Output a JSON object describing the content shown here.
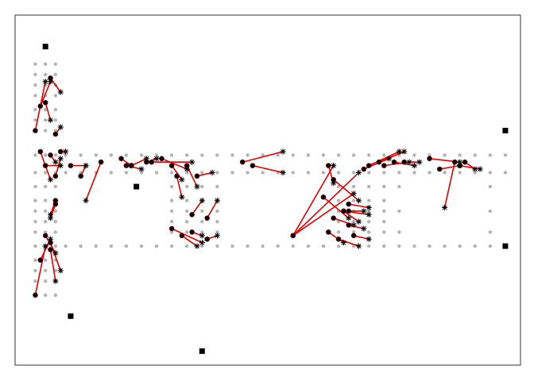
{
  "chart_data": {
    "type": "scatter",
    "xlim": [
      0,
      100
    ],
    "ylim": [
      0,
      100
    ],
    "axes_visible": false,
    "box": true,
    "grid_points": {
      "color": "#b3b3b3",
      "points": [
        [
          4,
          86
        ],
        [
          6,
          86
        ],
        [
          8,
          86
        ],
        [
          4,
          83
        ],
        [
          6,
          83
        ],
        [
          8,
          83
        ],
        [
          4,
          80
        ],
        [
          6,
          80
        ],
        [
          8,
          80
        ],
        [
          4,
          77
        ],
        [
          6,
          77
        ],
        [
          8,
          77
        ],
        [
          4,
          73
        ],
        [
          6,
          73
        ],
        [
          8,
          73
        ],
        [
          4,
          70
        ],
        [
          6,
          70
        ],
        [
          8,
          70
        ],
        [
          4,
          67
        ],
        [
          6,
          67
        ],
        [
          8,
          67
        ],
        [
          4,
          60
        ],
        [
          6,
          60
        ],
        [
          8,
          60
        ],
        [
          10,
          60
        ],
        [
          13,
          60
        ],
        [
          16,
          60
        ],
        [
          19,
          60
        ],
        [
          22,
          60
        ],
        [
          25,
          60
        ],
        [
          28,
          60
        ],
        [
          31,
          60
        ],
        [
          34,
          60
        ],
        [
          37,
          60
        ],
        [
          40,
          60
        ],
        [
          43,
          60
        ],
        [
          46,
          60
        ],
        [
          49,
          60
        ],
        [
          52,
          60
        ],
        [
          55,
          60
        ],
        [
          58,
          60
        ],
        [
          61,
          60
        ],
        [
          64,
          60
        ],
        [
          67,
          60
        ],
        [
          70,
          60
        ],
        [
          73,
          60
        ],
        [
          76,
          60
        ],
        [
          79,
          60
        ],
        [
          82,
          60
        ],
        [
          85,
          60
        ],
        [
          88,
          60
        ],
        [
          91,
          60
        ],
        [
          94,
          60
        ],
        [
          97,
          60
        ],
        [
          4,
          55
        ],
        [
          6,
          55
        ],
        [
          8,
          55
        ],
        [
          10,
          55
        ],
        [
          13,
          55
        ],
        [
          16,
          55
        ],
        [
          19,
          55
        ],
        [
          22,
          55
        ],
        [
          25,
          55
        ],
        [
          28,
          55
        ],
        [
          31,
          55
        ],
        [
          34,
          55
        ],
        [
          37,
          55
        ],
        [
          40,
          55
        ],
        [
          43,
          55
        ],
        [
          46,
          55
        ],
        [
          49,
          55
        ],
        [
          52,
          55
        ],
        [
          55,
          55
        ],
        [
          58,
          55
        ],
        [
          61,
          55
        ],
        [
          64,
          55
        ],
        [
          67,
          55
        ],
        [
          70,
          55
        ],
        [
          73,
          55
        ],
        [
          76,
          55
        ],
        [
          79,
          55
        ],
        [
          82,
          55
        ],
        [
          85,
          55
        ],
        [
          88,
          55
        ],
        [
          91,
          55
        ],
        [
          94,
          55
        ],
        [
          97,
          55
        ],
        [
          4,
          34
        ],
        [
          6,
          34
        ],
        [
          8,
          34
        ],
        [
          10,
          34
        ],
        [
          13,
          34
        ],
        [
          16,
          34
        ],
        [
          19,
          34
        ],
        [
          22,
          34
        ],
        [
          25,
          34
        ],
        [
          28,
          34
        ],
        [
          31,
          34
        ],
        [
          34,
          34
        ],
        [
          37,
          34
        ],
        [
          40,
          34
        ],
        [
          43,
          34
        ],
        [
          46,
          34
        ],
        [
          49,
          34
        ],
        [
          52,
          34
        ],
        [
          55,
          34
        ],
        [
          58,
          34
        ],
        [
          61,
          34
        ],
        [
          64,
          34
        ],
        [
          67,
          34
        ],
        [
          70,
          34
        ],
        [
          73,
          34
        ],
        [
          76,
          34
        ],
        [
          79,
          34
        ],
        [
          82,
          34
        ],
        [
          85,
          34
        ],
        [
          88,
          34
        ],
        [
          91,
          34
        ],
        [
          94,
          34
        ],
        [
          97,
          34
        ],
        [
          4,
          51
        ],
        [
          6,
          51
        ],
        [
          8,
          51
        ],
        [
          4,
          47
        ],
        [
          6,
          47
        ],
        [
          8,
          47
        ],
        [
          4,
          44
        ],
        [
          6,
          44
        ],
        [
          8,
          44
        ],
        [
          4,
          41
        ],
        [
          6,
          41
        ],
        [
          8,
          41
        ],
        [
          4,
          38
        ],
        [
          6,
          38
        ],
        [
          8,
          38
        ],
        [
          4,
          30
        ],
        [
          6,
          30
        ],
        [
          8,
          30
        ],
        [
          4,
          27
        ],
        [
          6,
          27
        ],
        [
          8,
          27
        ],
        [
          4,
          24
        ],
        [
          6,
          24
        ],
        [
          8,
          24
        ],
        [
          4,
          20
        ],
        [
          6,
          20
        ],
        [
          8,
          20
        ],
        [
          31,
          51
        ],
        [
          34,
          51
        ],
        [
          37,
          51
        ],
        [
          40,
          51
        ],
        [
          31,
          47
        ],
        [
          34,
          47
        ],
        [
          37,
          47
        ],
        [
          40,
          47
        ],
        [
          31,
          44
        ],
        [
          34,
          44
        ],
        [
          37,
          44
        ],
        [
          40,
          44
        ],
        [
          31,
          41
        ],
        [
          34,
          41
        ],
        [
          37,
          41
        ],
        [
          40,
          41
        ],
        [
          31,
          38
        ],
        [
          34,
          38
        ],
        [
          37,
          38
        ],
        [
          40,
          38
        ],
        [
          64,
          51
        ],
        [
          67,
          51
        ],
        [
          70,
          51
        ],
        [
          73,
          51
        ],
        [
          64,
          47
        ],
        [
          67,
          47
        ],
        [
          70,
          47
        ],
        [
          73,
          47
        ],
        [
          64,
          44
        ],
        [
          67,
          44
        ],
        [
          70,
          44
        ],
        [
          73,
          44
        ],
        [
          64,
          41
        ],
        [
          67,
          41
        ],
        [
          70,
          41
        ],
        [
          73,
          41
        ],
        [
          64,
          38
        ],
        [
          67,
          38
        ],
        [
          70,
          38
        ],
        [
          73,
          38
        ],
        [
          76,
          51
        ],
        [
          76,
          44
        ],
        [
          76,
          38
        ],
        [
          94,
          51
        ],
        [
          94,
          44
        ],
        [
          94,
          38
        ]
      ]
    },
    "reference_points": {
      "color": "#000000",
      "points": [
        [
          6,
          91
        ],
        [
          97,
          67
        ],
        [
          97,
          34
        ],
        [
          11,
          14
        ],
        [
          37,
          4
        ],
        [
          24,
          51
        ]
      ]
    },
    "segments": {
      "color": "#e00000",
      "from_marker": "filled-circle",
      "to_marker": "asterisk",
      "pairs": [
        [
          [
            7,
            82
          ],
          [
            9,
            78
          ]
        ],
        [
          [
            6,
            75
          ],
          [
            7,
            70
          ]
        ],
        [
          [
            5,
            74
          ],
          [
            7,
            81
          ]
        ],
        [
          [
            4,
            67
          ],
          [
            6,
            81
          ]
        ],
        [
          [
            8,
            66
          ],
          [
            9,
            68
          ]
        ],
        [
          [
            9,
            61
          ],
          [
            10,
            61
          ]
        ],
        [
          [
            7,
            60
          ],
          [
            8,
            58
          ]
        ],
        [
          [
            5,
            61
          ],
          [
            7,
            53
          ]
        ],
        [
          [
            6,
            57
          ],
          [
            9,
            57
          ]
        ],
        [
          [
            8,
            54
          ],
          [
            9,
            59
          ]
        ],
        [
          [
            11,
            57
          ],
          [
            14,
            57
          ]
        ],
        [
          [
            13,
            54
          ],
          [
            14,
            57
          ]
        ],
        [
          [
            17,
            58
          ],
          [
            14,
            47
          ]
        ],
        [
          [
            21,
            59
          ],
          [
            23,
            57
          ]
        ],
        [
          [
            22,
            57
          ],
          [
            25,
            56
          ]
        ],
        [
          [
            23,
            57
          ],
          [
            26,
            59
          ]
        ],
        [
          [
            26,
            58
          ],
          [
            28,
            59
          ]
        ],
        [
          [
            27,
            58
          ],
          [
            35,
            58
          ]
        ],
        [
          [
            29,
            59
          ],
          [
            34,
            56
          ]
        ],
        [
          [
            31,
            57
          ],
          [
            33,
            53
          ]
        ],
        [
          [
            32,
            54
          ],
          [
            33,
            48
          ]
        ],
        [
          [
            34,
            57
          ],
          [
            36,
            51
          ]
        ],
        [
          [
            36,
            54
          ],
          [
            39,
            55
          ]
        ],
        [
          [
            35,
            43
          ],
          [
            37,
            47
          ]
        ],
        [
          [
            38,
            42
          ],
          [
            40,
            47
          ]
        ],
        [
          [
            35,
            38
          ],
          [
            37,
            37
          ]
        ],
        [
          [
            38,
            36
          ],
          [
            40,
            37
          ]
        ],
        [
          [
            31,
            39
          ],
          [
            37,
            35
          ]
        ],
        [
          [
            33,
            37
          ],
          [
            36,
            34
          ]
        ],
        [
          [
            45,
            58
          ],
          [
            53,
            61
          ]
        ],
        [
          [
            47,
            57
          ],
          [
            53,
            55
          ]
        ],
        [
          [
            55,
            37
          ],
          [
            63,
            57
          ]
        ],
        [
          [
            55,
            37
          ],
          [
            68,
            55
          ]
        ],
        [
          [
            55,
            37
          ],
          [
            67,
            49
          ]
        ],
        [
          [
            61,
            48
          ],
          [
            66,
            42
          ]
        ],
        [
          [
            62,
            57
          ],
          [
            63,
            52
          ]
        ],
        [
          [
            63,
            53
          ],
          [
            68,
            47
          ]
        ],
        [
          [
            65,
            44
          ],
          [
            70,
            43
          ]
        ],
        [
          [
            63,
            42
          ],
          [
            67,
            40
          ]
        ],
        [
          [
            66,
            40
          ],
          [
            69,
            39
          ]
        ],
        [
          [
            67,
            37
          ],
          [
            70,
            36
          ]
        ],
        [
          [
            62,
            38
          ],
          [
            65,
            35
          ]
        ],
        [
          [
            64,
            36
          ],
          [
            68,
            34
          ]
        ],
        [
          [
            72,
            58
          ],
          [
            77,
            61
          ]
        ],
        [
          [
            73,
            57
          ],
          [
            78,
            58
          ]
        ],
        [
          [
            75,
            58
          ],
          [
            79,
            57
          ]
        ],
        [
          [
            77,
            58
          ],
          [
            80,
            58
          ]
        ],
        [
          [
            82,
            59
          ],
          [
            88,
            58
          ]
        ],
        [
          [
            84,
            56
          ],
          [
            88,
            57
          ]
        ],
        [
          [
            87,
            58
          ],
          [
            85,
            45
          ]
        ],
        [
          [
            88,
            57
          ],
          [
            92,
            56
          ]
        ],
        [
          [
            89,
            58
          ],
          [
            91,
            56
          ]
        ],
        [
          [
            69,
            56
          ],
          [
            74,
            59
          ]
        ],
        [
          [
            70,
            57
          ],
          [
            76,
            61
          ]
        ],
        [
          [
            66,
            46
          ],
          [
            70,
            45
          ]
        ],
        [
          [
            65,
            44
          ],
          [
            68,
            41
          ]
        ],
        [
          [
            66,
            44
          ],
          [
            69,
            44
          ]
        ],
        [
          [
            7,
            33
          ],
          [
            8,
            24
          ]
        ],
        [
          [
            6,
            37
          ],
          [
            8,
            32
          ]
        ],
        [
          [
            7,
            35
          ],
          [
            9,
            27
          ]
        ],
        [
          [
            4,
            20
          ],
          [
            6,
            34
          ]
        ],
        [
          [
            5,
            30
          ],
          [
            7,
            36
          ]
        ],
        [
          [
            8,
            47
          ],
          [
            7,
            43
          ]
        ],
        [
          [
            8,
            46
          ],
          [
            7,
            42
          ]
        ]
      ]
    }
  }
}
